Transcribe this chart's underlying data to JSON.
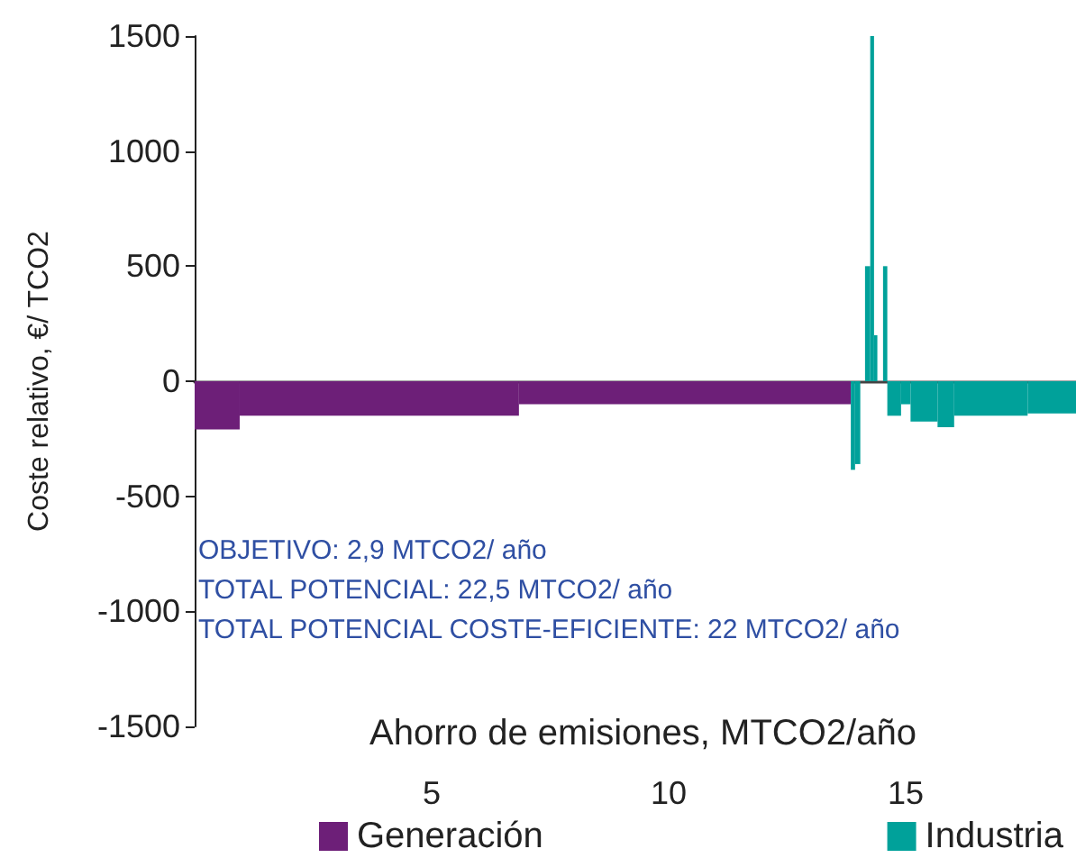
{
  "chart_data": {
    "type": "histogram",
    "xlabel": "Ahorro de emisiones, MTCO2/año",
    "ylabel": "Coste relativo, €/ TCO2",
    "xlim": [
      0,
      18.59
    ],
    "xticks": [
      5,
      10,
      15
    ],
    "ylim": [
      -1500,
      1500
    ],
    "yticks": [
      -1500,
      -1000,
      -500,
      0,
      500,
      1000,
      1500
    ],
    "bins": [
      0,
      0.95,
      6.84,
      13.84,
      13.93,
      14.04,
      14.14,
      14.25,
      14.33,
      14.4,
      14.52,
      14.61,
      14.9,
      15.1,
      15.67,
      16.02,
      17.57,
      18.59
    ],
    "series": [
      {
        "name": "Generación",
        "color": "#6d1f78",
        "values": [
          -210,
          -150,
          -100,
          null,
          null,
          null,
          null,
          null,
          null,
          null,
          null,
          null,
          null,
          null,
          null,
          null,
          null
        ]
      },
      {
        "name": "Industria",
        "color": "#00a19a",
        "values": [
          null,
          null,
          null,
          -385,
          -360,
          null,
          500,
          1500,
          200,
          null,
          500,
          -150,
          -100,
          -175,
          -200,
          -150,
          -140
        ]
      }
    ],
    "annotations": [
      "OBJETIVO: 2,9 MTCO2/ año",
      "TOTAL POTENCIAL: 22,5 MTCO2/ año",
      "TOTAL POTENCIAL COSTE-EFICIENTE: 22 MTCO2/ año"
    ],
    "legend": "bottom"
  }
}
